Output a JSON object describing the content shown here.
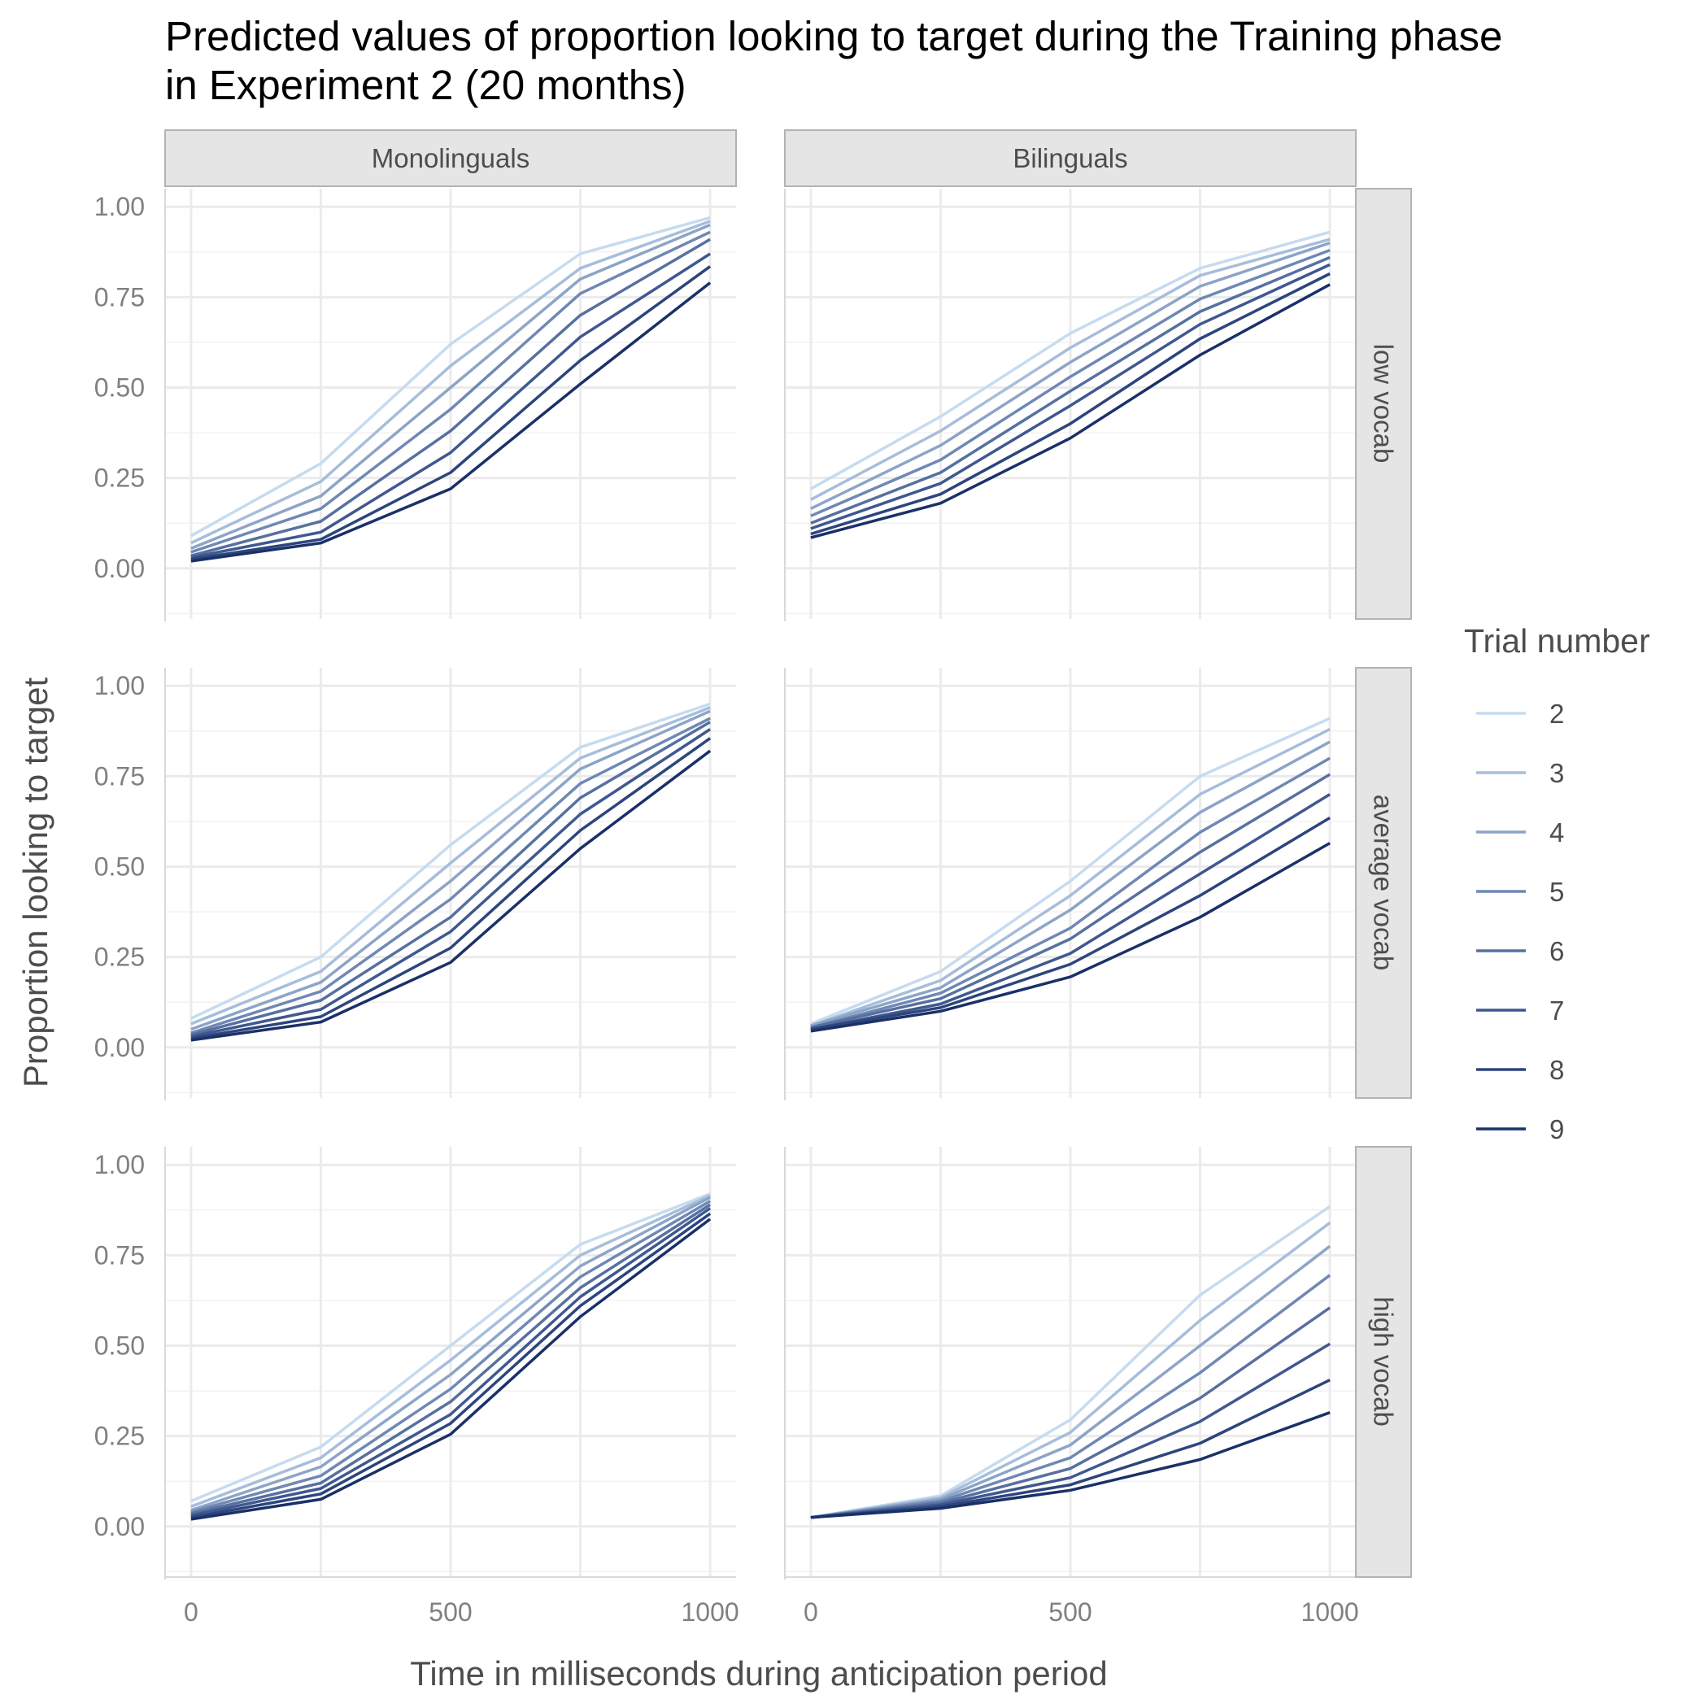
{
  "chart_data": {
    "type": "line",
    "title_line1": "Predicted values of proportion looking to target during the Training phase",
    "title_line2": "in Experiment 2 (20 months)",
    "xlabel": "Time in milliseconds during anticipation period",
    "ylabel": "Proportion looking to target",
    "xlim": [
      -50,
      1050
    ],
    "ylim": [
      -0.14,
      1.05
    ],
    "x_ticks": [
      0,
      500,
      1000
    ],
    "x_tick_labels": [
      "0",
      "500",
      "1000"
    ],
    "y_ticks": [
      0,
      0.25,
      0.5,
      0.75,
      1
    ],
    "y_tick_labels": [
      "0.00",
      "0.25",
      "0.50",
      "0.75",
      "1.00"
    ],
    "grid": true,
    "legend": {
      "title": "Trial number",
      "position": "right",
      "items": [
        "2",
        "3",
        "4",
        "5",
        "6",
        "7",
        "8",
        "9"
      ],
      "colors": [
        "#c6dbef",
        "#a6bddb",
        "#8ca4c7",
        "#6f88b4",
        "#5670a0",
        "#3f5890",
        "#2c457c",
        "#1a3068"
      ]
    },
    "columns": [
      "Monolinguals",
      "Bilinguals"
    ],
    "rows": [
      "low vocab",
      "average vocab",
      "high vocab"
    ],
    "x": [
      0,
      250,
      500,
      750,
      1000
    ],
    "panels": [
      {
        "column": "Monolinguals",
        "row": "low vocab",
        "series": [
          {
            "trial": "2",
            "values": [
              0.09,
              0.29,
              0.62,
              0.87,
              0.97
            ]
          },
          {
            "trial": "3",
            "values": [
              0.07,
              0.24,
              0.56,
              0.83,
              0.96
            ]
          },
          {
            "trial": "4",
            "values": [
              0.055,
              0.2,
              0.5,
              0.8,
              0.95
            ]
          },
          {
            "trial": "5",
            "values": [
              0.045,
              0.165,
              0.44,
              0.76,
              0.93
            ]
          },
          {
            "trial": "6",
            "values": [
              0.035,
              0.13,
              0.38,
              0.7,
              0.91
            ]
          },
          {
            "trial": "7",
            "values": [
              0.03,
              0.1,
              0.32,
              0.64,
              0.87
            ]
          },
          {
            "trial": "8",
            "values": [
              0.025,
              0.08,
              0.265,
              0.575,
              0.835
            ]
          },
          {
            "trial": "9",
            "values": [
              0.02,
              0.07,
              0.22,
              0.51,
              0.79
            ]
          }
        ]
      },
      {
        "column": "Bilinguals",
        "row": "low vocab",
        "series": [
          {
            "trial": "2",
            "values": [
              0.22,
              0.42,
              0.65,
              0.83,
              0.93
            ]
          },
          {
            "trial": "3",
            "values": [
              0.19,
              0.38,
              0.61,
              0.81,
              0.91
            ]
          },
          {
            "trial": "4",
            "values": [
              0.165,
              0.34,
              0.57,
              0.78,
              0.9
            ]
          },
          {
            "trial": "5",
            "values": [
              0.145,
              0.3,
              0.53,
              0.745,
              0.88
            ]
          },
          {
            "trial": "6",
            "values": [
              0.125,
              0.265,
              0.49,
              0.71,
              0.86
            ]
          },
          {
            "trial": "7",
            "values": [
              0.11,
              0.235,
              0.45,
              0.675,
              0.84
            ]
          },
          {
            "trial": "8",
            "values": [
              0.095,
              0.205,
              0.4,
              0.635,
              0.815
            ]
          },
          {
            "trial": "9",
            "values": [
              0.085,
              0.18,
              0.36,
              0.59,
              0.785
            ]
          }
        ]
      },
      {
        "column": "Monolinguals",
        "row": "average vocab",
        "series": [
          {
            "trial": "2",
            "values": [
              0.08,
              0.25,
              0.56,
              0.83,
              0.95
            ]
          },
          {
            "trial": "3",
            "values": [
              0.065,
              0.21,
              0.51,
              0.8,
              0.94
            ]
          },
          {
            "trial": "4",
            "values": [
              0.05,
              0.18,
              0.46,
              0.77,
              0.93
            ]
          },
          {
            "trial": "5",
            "values": [
              0.04,
              0.155,
              0.41,
              0.73,
              0.91
            ]
          },
          {
            "trial": "6",
            "values": [
              0.035,
              0.13,
              0.36,
              0.69,
              0.9
            ]
          },
          {
            "trial": "7",
            "values": [
              0.03,
              0.105,
              0.32,
              0.645,
              0.88
            ]
          },
          {
            "trial": "8",
            "values": [
              0.025,
              0.085,
              0.275,
              0.6,
              0.855
            ]
          },
          {
            "trial": "9",
            "values": [
              0.02,
              0.07,
              0.235,
              0.55,
              0.82
            ]
          }
        ]
      },
      {
        "column": "Bilinguals",
        "row": "average vocab",
        "series": [
          {
            "trial": "2",
            "values": [
              0.065,
              0.21,
              0.46,
              0.75,
              0.91
            ]
          },
          {
            "trial": "3",
            "values": [
              0.06,
              0.185,
              0.42,
              0.7,
              0.88
            ]
          },
          {
            "trial": "4",
            "values": [
              0.06,
              0.165,
              0.38,
              0.65,
              0.845
            ]
          },
          {
            "trial": "5",
            "values": [
              0.055,
              0.15,
              0.33,
              0.595,
              0.8
            ]
          },
          {
            "trial": "6",
            "values": [
              0.055,
              0.135,
              0.3,
              0.54,
              0.755
            ]
          },
          {
            "trial": "7",
            "values": [
              0.05,
              0.12,
              0.26,
              0.48,
              0.7
            ]
          },
          {
            "trial": "8",
            "values": [
              0.05,
              0.11,
              0.23,
              0.42,
              0.635
            ]
          },
          {
            "trial": "9",
            "values": [
              0.045,
              0.1,
              0.195,
              0.36,
              0.565
            ]
          }
        ]
      },
      {
        "column": "Monolinguals",
        "row": "high vocab",
        "series": [
          {
            "trial": "2",
            "values": [
              0.07,
              0.22,
              0.5,
              0.78,
              0.92
            ]
          },
          {
            "trial": "3",
            "values": [
              0.055,
              0.19,
              0.46,
              0.75,
              0.915
            ]
          },
          {
            "trial": "4",
            "values": [
              0.045,
              0.165,
              0.42,
              0.72,
              0.91
            ]
          },
          {
            "trial": "5",
            "values": [
              0.04,
              0.14,
              0.38,
              0.69,
              0.9
            ]
          },
          {
            "trial": "6",
            "values": [
              0.035,
              0.12,
              0.345,
              0.66,
              0.89
            ]
          },
          {
            "trial": "7",
            "values": [
              0.03,
              0.105,
              0.31,
              0.635,
              0.88
            ]
          },
          {
            "trial": "8",
            "values": [
              0.025,
              0.09,
              0.285,
              0.61,
              0.865
            ]
          },
          {
            "trial": "9",
            "values": [
              0.02,
              0.075,
              0.255,
              0.58,
              0.85
            ]
          }
        ]
      },
      {
        "column": "Bilinguals",
        "row": "high vocab",
        "series": [
          {
            "trial": "2",
            "values": [
              0.025,
              0.085,
              0.295,
              0.64,
              0.885
            ]
          },
          {
            "trial": "3",
            "values": [
              0.025,
              0.08,
              0.26,
              0.57,
              0.84
            ]
          },
          {
            "trial": "4",
            "values": [
              0.025,
              0.075,
              0.225,
              0.5,
              0.775
            ]
          },
          {
            "trial": "5",
            "values": [
              0.025,
              0.07,
              0.19,
              0.425,
              0.695
            ]
          },
          {
            "trial": "6",
            "values": [
              0.025,
              0.065,
              0.16,
              0.355,
              0.605
            ]
          },
          {
            "trial": "7",
            "values": [
              0.025,
              0.06,
              0.135,
              0.29,
              0.505
            ]
          },
          {
            "trial": "8",
            "values": [
              0.025,
              0.055,
              0.115,
              0.23,
              0.405
            ]
          },
          {
            "trial": "9",
            "values": [
              0.025,
              0.05,
              0.1,
              0.185,
              0.315
            ]
          }
        ]
      }
    ]
  }
}
